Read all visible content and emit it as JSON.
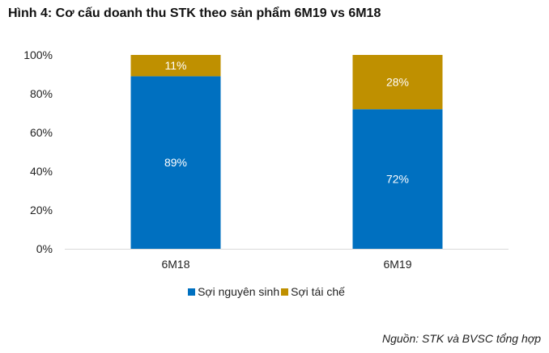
{
  "title": "Hình 4: Cơ cấu doanh thu STK theo sản phẩm 6M19 vs 6M18",
  "source": "Nguồn: STK và BVSC tổng hợp",
  "chart_data": {
    "type": "bar",
    "stacked": true,
    "percent": true,
    "title": "Hình 4: Cơ cấu doanh thu STK theo sản phẩm 6M19 vs 6M18",
    "categories": [
      "6M18",
      "6M19"
    ],
    "series": [
      {
        "name": "Sợi nguyên sinh",
        "values": [
          89,
          72
        ],
        "labels": [
          "89%",
          "72%"
        ],
        "color": "#0070C0"
      },
      {
        "name": "Sợi tái chế",
        "values": [
          11,
          28
        ],
        "labels": [
          "11%",
          "28%"
        ],
        "color": "#BF9000"
      }
    ],
    "ylim": [
      0,
      100
    ],
    "yticks": [
      "0%",
      "20%",
      "40%",
      "60%",
      "80%",
      "100%"
    ],
    "grid": false,
    "legend": "bottom"
  }
}
